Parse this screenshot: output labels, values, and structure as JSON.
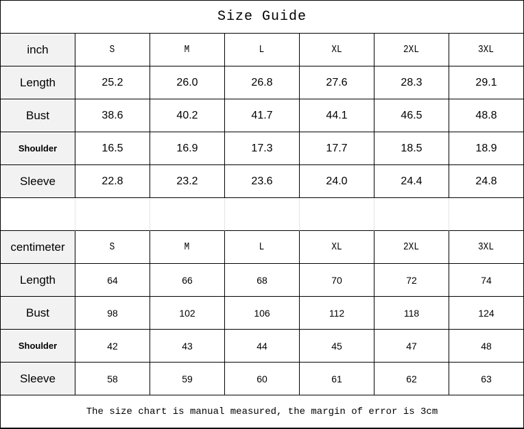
{
  "title": "Size Guide",
  "sizes": [
    "S",
    "M",
    "L",
    "XL",
    "2XL",
    "3XL"
  ],
  "inch": {
    "unit_label": "inch",
    "rows": [
      {
        "label": "Length",
        "values": [
          "25.2",
          "26.0",
          "26.8",
          "27.6",
          "28.3",
          "29.1"
        ]
      },
      {
        "label": "Bust",
        "values": [
          "38.6",
          "40.2",
          "41.7",
          "44.1",
          "46.5",
          "48.8"
        ]
      },
      {
        "label": "Shoulder",
        "values": [
          "16.5",
          "16.9",
          "17.3",
          "17.7",
          "18.5",
          "18.9"
        ]
      },
      {
        "label": "Sleeve",
        "values": [
          "22.8",
          "23.2",
          "23.6",
          "24.0",
          "24.4",
          "24.8"
        ]
      }
    ]
  },
  "centimeter": {
    "unit_label": "centimeter",
    "rows": [
      {
        "label": "Length",
        "values": [
          "64",
          "66",
          "68",
          "70",
          "72",
          "74"
        ]
      },
      {
        "label": "Bust",
        "values": [
          "98",
          "102",
          "106",
          "112",
          "118",
          "124"
        ]
      },
      {
        "label": "Shoulder",
        "values": [
          "42",
          "43",
          "44",
          "45",
          "47",
          "48"
        ]
      },
      {
        "label": "Sleeve",
        "values": [
          "58",
          "59",
          "60",
          "61",
          "62",
          "63"
        ]
      }
    ]
  },
  "note": "The size chart is manual measured, the margin of error is 3cm",
  "colors": {
    "label_bg": "#f2f2f2",
    "border": "#000000"
  }
}
